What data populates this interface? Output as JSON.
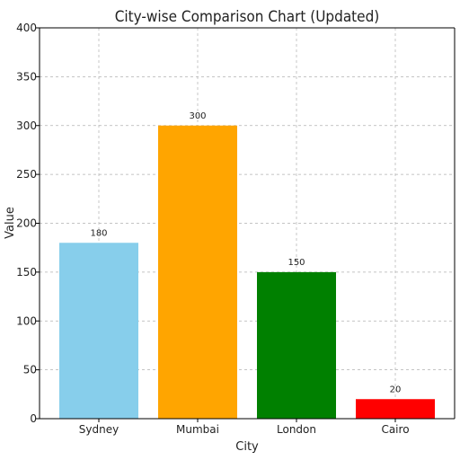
{
  "chart_data": {
    "type": "bar",
    "title": "City-wise Comparison Chart (Updated)",
    "xlabel": "City",
    "ylabel": "Value",
    "categories": [
      "Sydney",
      "Mumbai",
      "London",
      "Cairo"
    ],
    "values": [
      180,
      300,
      150,
      20
    ],
    "data_labels": [
      "180",
      "300",
      "150",
      "20"
    ],
    "colors": [
      "#87ceeb",
      "#ffa500",
      "#008000",
      "#ff0000"
    ],
    "ylim": [
      0,
      400
    ],
    "yticks": [
      0,
      50,
      100,
      150,
      200,
      250,
      300,
      350,
      400
    ],
    "ytick_labels": [
      "0",
      "50",
      "100",
      "150",
      "200",
      "250",
      "300",
      "350",
      "400"
    ],
    "grid": true,
    "legend": false
  }
}
